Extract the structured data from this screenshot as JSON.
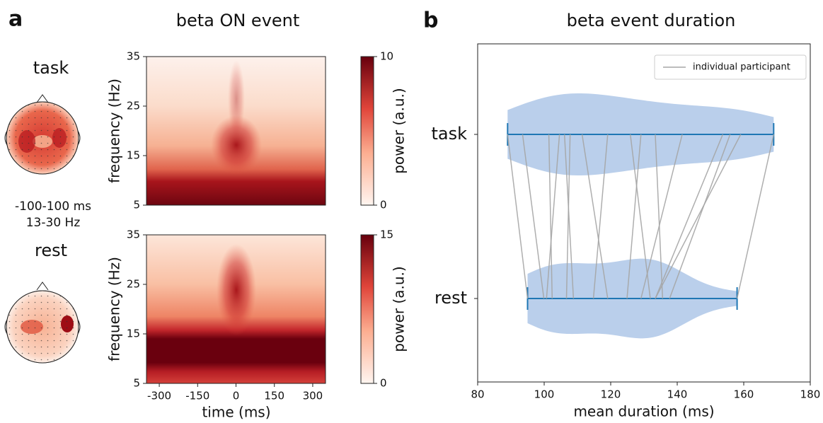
{
  "chart_data": [
    {
      "type": "heatmap",
      "panel": "a",
      "title": "beta ON event",
      "row_label": "task",
      "annotations": [
        "-100-100 ms",
        "13-30 Hz"
      ],
      "ylabel": "frequency (Hz)",
      "ylim": [
        5,
        35
      ],
      "yticks": [
        5,
        15,
        25,
        35
      ],
      "xlim": [
        -350,
        350
      ],
      "colorbar": {
        "label": "power (a.u.)",
        "clim": [
          0,
          10
        ],
        "ticks": [
          0,
          10
        ]
      }
    },
    {
      "type": "heatmap",
      "row_label": "rest",
      "ylabel": "frequency (Hz)",
      "ylim": [
        5,
        35
      ],
      "yticks": [
        5,
        15,
        25,
        35
      ],
      "xlabel": "time (ms)",
      "xlim": [
        -350,
        350
      ],
      "xticks": [
        -300,
        -150,
        0,
        150,
        300
      ],
      "colorbar": {
        "label": "power (a.u.)",
        "clim": [
          0,
          15
        ],
        "ticks": [
          0,
          15
        ]
      }
    },
    {
      "type": "violin",
      "panel": "b",
      "title": "beta event duration",
      "categories": [
        "task",
        "rest"
      ],
      "xlabel": "mean duration (ms)",
      "xlim": [
        80,
        180
      ],
      "xticks": [
        80,
        100,
        120,
        140,
        160,
        180
      ],
      "violin_color": "#aec7e8",
      "range_color": "#1f77b4",
      "legend": "upper right",
      "participants": {
        "name": "individual participant",
        "color": "#a6a6a6",
        "task": [
          89,
          93.5,
          101.4,
          104.6,
          106.1,
          107.8,
          111.4,
          119.1,
          125.9,
          129.1,
          133.4,
          141.5,
          153.7,
          155.9,
          159.1,
          169
        ],
        "rest": [
          95,
          99.9,
          102.4,
          100.7,
          108.8,
          106.7,
          119.1,
          114.8,
          131.9,
          124.9,
          135.6,
          129.1,
          133.4,
          137.7,
          133.4,
          158
        ]
      }
    }
  ]
}
